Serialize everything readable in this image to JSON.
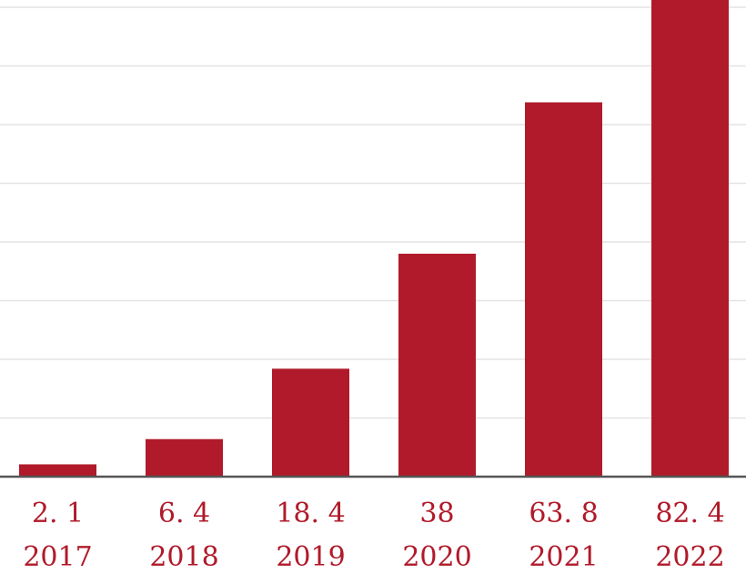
{
  "chart_data": {
    "type": "bar",
    "categories": [
      "2017",
      "2018",
      "2019",
      "2020",
      "2021",
      "2022"
    ],
    "values": [
      2.1,
      6.4,
      18.4,
      38,
      63.8,
      82.4
    ],
    "value_labels": [
      "2. 1",
      "6. 4",
      "18. 4",
      "38",
      "63. 8",
      "82. 4"
    ],
    "title": "",
    "xlabel": "",
    "ylabel": "",
    "ylim": [
      0,
      81
    ],
    "grid": true,
    "legend": "none",
    "colors": {
      "bar": "#b01a2a",
      "label": "#b01a2a",
      "axis": "#555555",
      "grid": "#e3e3e3"
    }
  }
}
